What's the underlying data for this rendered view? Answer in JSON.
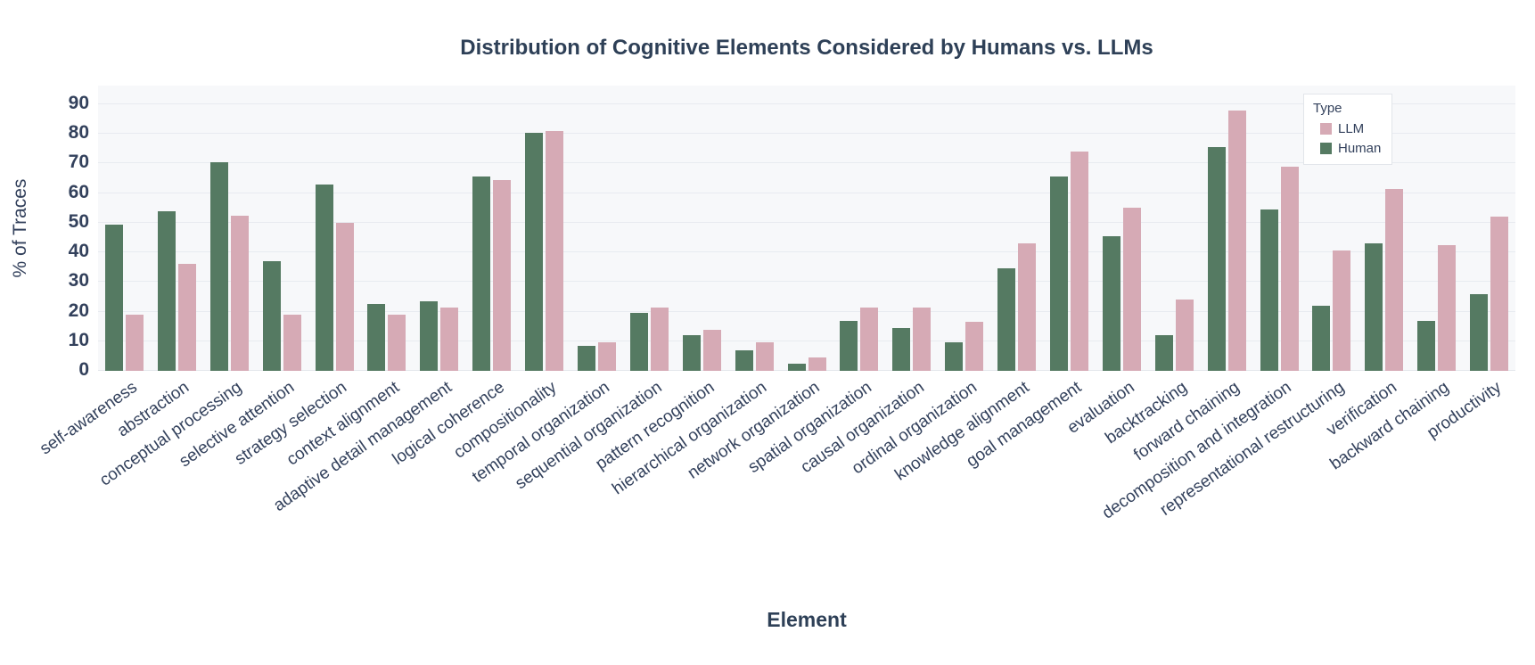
{
  "title": "Distribution of Cognitive Elements Considered by Humans vs. LLMs",
  "colors": {
    "human": "#557a62",
    "llm": "#d6aab5",
    "title_text": "#2e4057",
    "tick_text": "#33415c",
    "plot_bg": "#f7f8fa",
    "gridline": "#e8ebf0",
    "legend_border": "#e2e5ea",
    "page_bg": "#ffffff"
  },
  "chart_data": {
    "type": "bar",
    "title": "Distribution of Cognitive Elements Considered by Humans vs. LLMs",
    "xlabel": "Element",
    "ylabel": "% of Traces",
    "ylim": [
      0,
      90
    ],
    "ytick_step": 10,
    "yticks": [
      0,
      10,
      20,
      30,
      40,
      50,
      60,
      70,
      80,
      90
    ],
    "grid": true,
    "bar_order_in_group": [
      "Human",
      "LLM"
    ],
    "legend": {
      "title": "Type",
      "position": "top-right",
      "entries": [
        {
          "label": "LLM",
          "color": "#d6aab5"
        },
        {
          "label": "Human",
          "color": "#557a62"
        }
      ]
    },
    "categories": [
      "self-awareness",
      "abstraction",
      "conceptual processing",
      "selective attention",
      "strategy selection",
      "context alignment",
      "adaptive detail management",
      "logical coherence",
      "compositionality",
      "temporal organization",
      "sequential organization",
      "pattern recognition",
      "hierarchical organization",
      "network organization",
      "spatial organization",
      "causal organization",
      "ordinal organization",
      "knowledge alignment",
      "goal management",
      "evaluation",
      "backtracking",
      "forward chaining",
      "decomposition and integration",
      "representational restructuring",
      "verification",
      "backward chaining",
      "productivity"
    ],
    "series": [
      {
        "name": "Human",
        "color": "#557a62",
        "values": [
          49.5,
          54,
          70.5,
          37,
          63,
          22.5,
          23.5,
          65.5,
          80.5,
          8.5,
          19.5,
          12,
          7,
          2.5,
          17,
          14.5,
          9.5,
          34.5,
          65.5,
          45.5,
          12,
          75.5,
          54.5,
          22,
          43,
          17,
          26
        ]
      },
      {
        "name": "LLM",
        "color": "#d6aab5",
        "values": [
          19,
          36,
          52.5,
          19,
          50,
          19,
          21.5,
          64.5,
          81,
          9.5,
          21.5,
          14,
          9.5,
          4.5,
          21.5,
          21.5,
          16.5,
          43,
          74,
          55,
          24,
          88,
          69,
          40.5,
          61.5,
          42.5,
          52
        ]
      }
    ]
  }
}
